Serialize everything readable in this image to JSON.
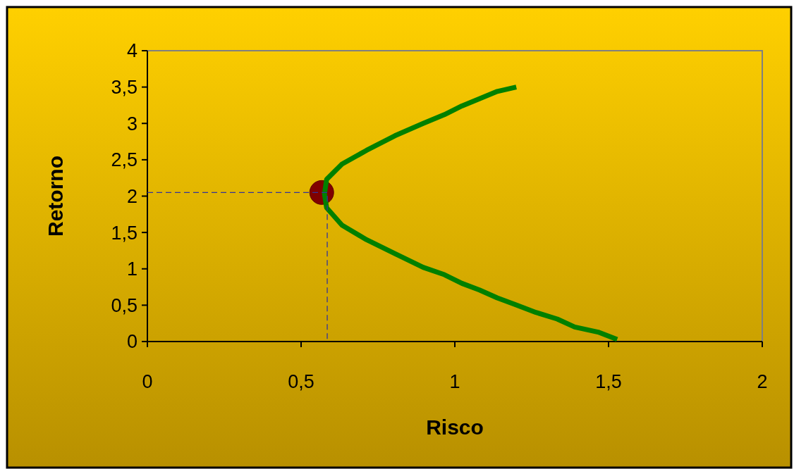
{
  "chart_data": {
    "type": "line",
    "xlabel": "Risco",
    "ylabel": "Retorno",
    "xlim": [
      0,
      2
    ],
    "ylim": [
      0,
      4
    ],
    "xticks": [
      0,
      {
        "value": 0.5,
        "label": "0,5"
      },
      1,
      {
        "value": 1.5,
        "label": "1,5"
      },
      2
    ],
    "yticks": [
      0,
      {
        "value": 0.5,
        "label": "0,5"
      },
      1,
      {
        "value": 1.5,
        "label": "1,5"
      },
      2,
      {
        "value": 2.5,
        "label": "2,5"
      },
      3,
      {
        "value": 3.5,
        "label": "3,5"
      },
      4
    ],
    "grid": false,
    "series": [
      {
        "type": "line",
        "color": "#008000",
        "line_style": "solid",
        "x": [
          1.2,
          1.138,
          1.08,
          1.023,
          0.966,
          0.897,
          0.805,
          0.713,
          0.633,
          0.583,
          0.576,
          0.583,
          0.633,
          0.713,
          0.805,
          0.897,
          0.966,
          1.023,
          1.08,
          1.138,
          1.195,
          1.264,
          1.333,
          1.39,
          1.466,
          1.528
        ],
        "values": [
          3.5,
          3.44,
          3.34,
          3.24,
          3.12,
          3.0,
          2.83,
          2.63,
          2.44,
          2.23,
          2.03,
          1.84,
          1.6,
          1.4,
          1.21,
          1.02,
          0.92,
          0.8,
          0.71,
          0.6,
          0.51,
          0.4,
          0.31,
          0.2,
          0.13,
          0.03
        ]
      },
      {
        "type": "line",
        "color": "#333399",
        "line_style": "dashed",
        "x": [
          0,
          0.585,
          0.585
        ],
        "values": [
          2.05,
          2.05,
          0
        ]
      },
      {
        "type": "scatter",
        "color": "#800000",
        "marker": "circle",
        "x": [
          0.567
        ],
        "values": [
          2.05
        ]
      }
    ]
  }
}
